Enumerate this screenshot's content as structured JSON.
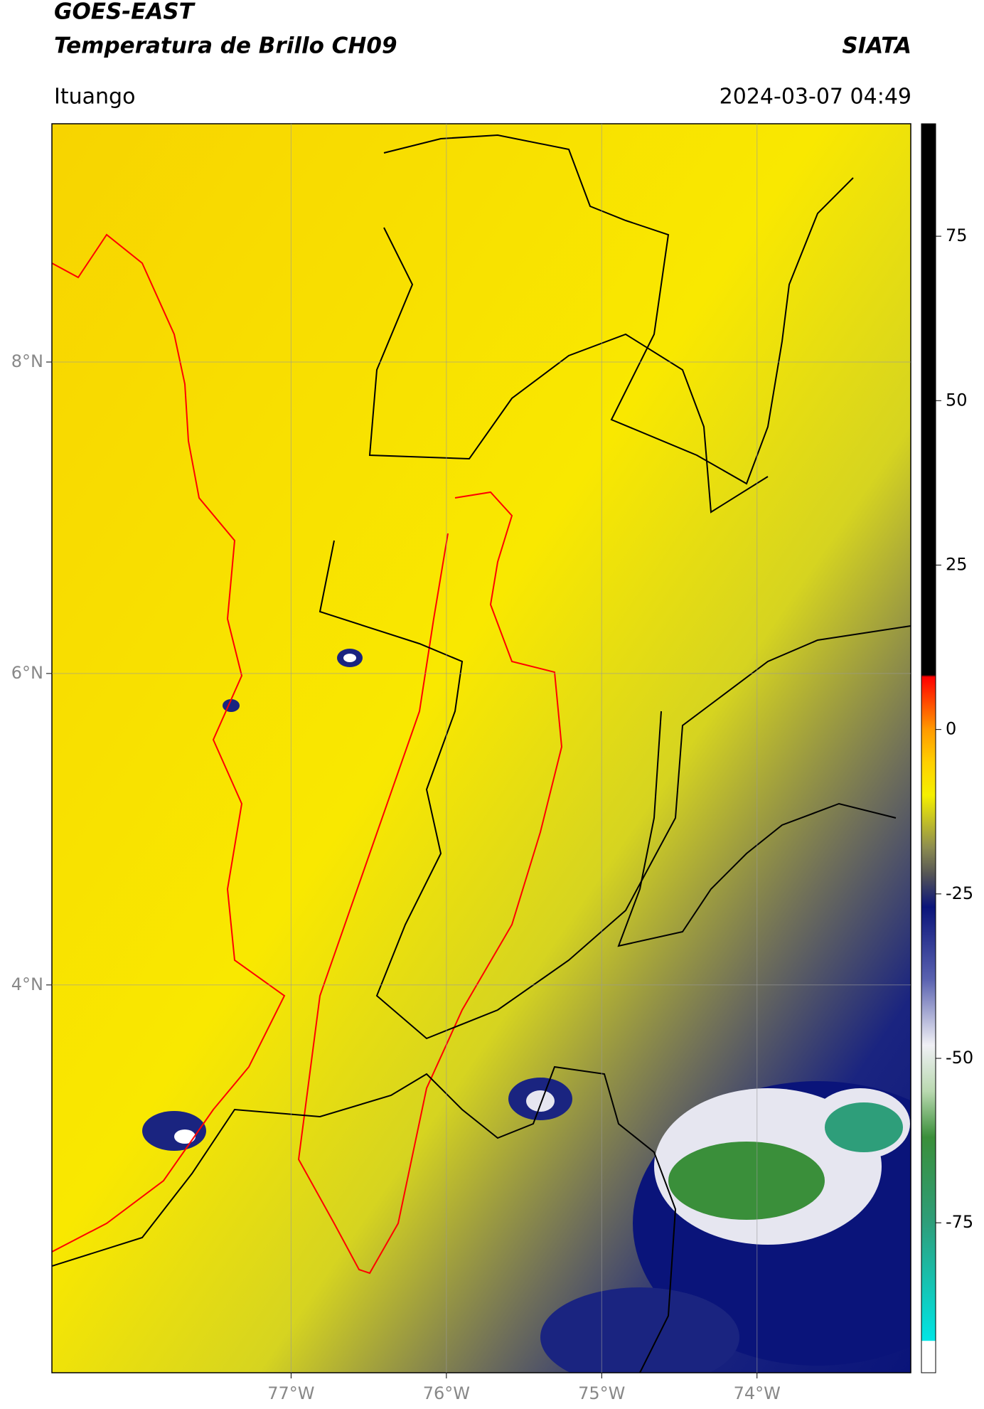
{
  "chart_data": {
    "type": "map",
    "title": "GOES-EAST",
    "subtitle": "Temperatura de Brillo CH09",
    "source": "SIATA",
    "region": "Ituango",
    "datetime": "2024-03-07 04:49",
    "xlim": [
      -78.54,
      -73.01
    ],
    "ylim": [
      1.51,
      9.53
    ],
    "xticks": [
      {
        "value": -77,
        "label": "77°W"
      },
      {
        "value": -76,
        "label": "76°W"
      },
      {
        "value": -75,
        "label": "75°W"
      },
      {
        "value": -74,
        "label": "74°W"
      }
    ],
    "yticks": [
      {
        "value": 8,
        "label": "8°N"
      },
      {
        "value": 6,
        "label": "6°N"
      },
      {
        "value": 4,
        "label": "4°N"
      }
    ],
    "grid": true,
    "colorbar": {
      "lim": [
        -97.8,
        92.1
      ],
      "ticks": [
        75,
        50,
        25,
        0,
        -25,
        -50,
        -75
      ],
      "stops": [
        {
          "value": -97.8,
          "color": "#ffffff"
        },
        {
          "value": -93,
          "color": "#ffffff"
        },
        {
          "value": -92.9,
          "color": "#00e5e5"
        },
        {
          "value": -75,
          "color": "#2e9e7a"
        },
        {
          "value": -62,
          "color": "#3a8f3a"
        },
        {
          "value": -55,
          "color": "#b9d9b0"
        },
        {
          "value": -48,
          "color": "#f0f0f5"
        },
        {
          "value": -38,
          "color": "#5a62b0"
        },
        {
          "value": -27,
          "color": "#0a147a"
        },
        {
          "value": -22,
          "color": "#555555"
        },
        {
          "value": -18,
          "color": "#8c8c50"
        },
        {
          "value": -10,
          "color": "#f5f000"
        },
        {
          "value": -5,
          "color": "#ffd000"
        },
        {
          "value": 0,
          "color": "#ff9a00"
        },
        {
          "value": 8,
          "color": "#ff0000"
        },
        {
          "value": 8.3,
          "color": "#000000"
        },
        {
          "value": 92.1,
          "color": "#000000"
        }
      ]
    }
  }
}
